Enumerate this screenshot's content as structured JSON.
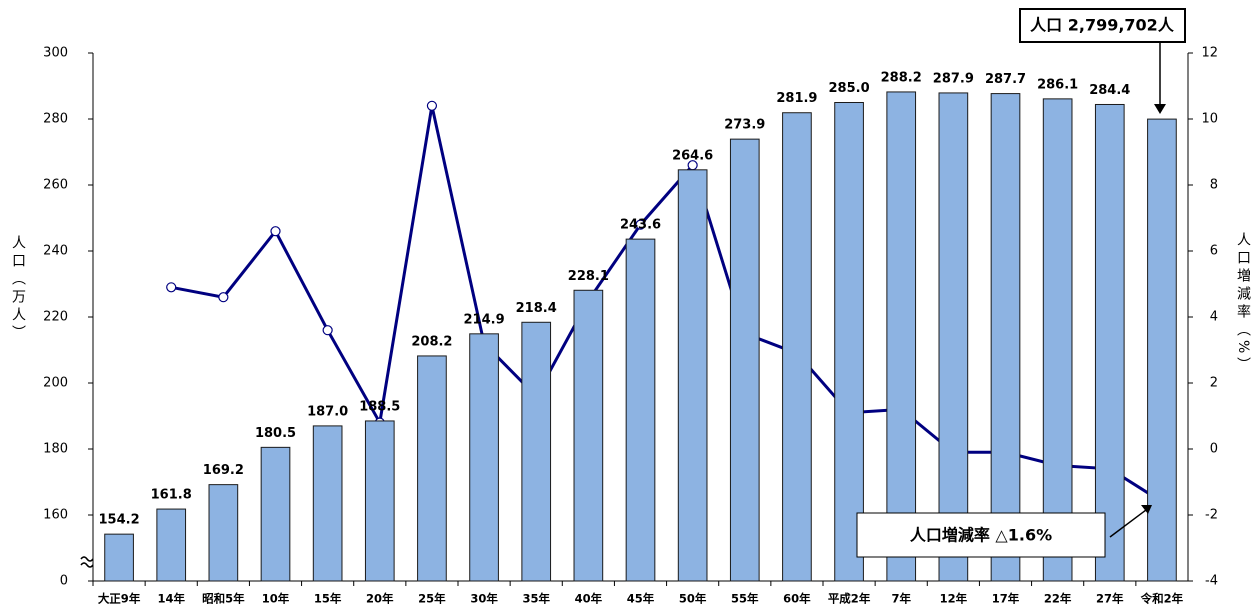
{
  "chart_data": {
    "type": "bar_line",
    "categories": [
      "大正9年",
      "14年",
      "昭和5年",
      "10年",
      "15年",
      "20年",
      "25年",
      "30年",
      "35年",
      "40年",
      "45年",
      "50年",
      "55年",
      "60年",
      "平成2年",
      "7年",
      "12年",
      "17年",
      "22年",
      "27年",
      "令和2年"
    ],
    "y_label": "人口（万人）",
    "y2_label": "人口増減率（%）",
    "ylim": [
      0,
      300
    ],
    "yticks": [
      0,
      160,
      180,
      200,
      220,
      240,
      260,
      280,
      300
    ],
    "axis_break": true,
    "y2lim": [
      -4,
      12
    ],
    "y2ticks": [
      -4,
      -2,
      0,
      2,
      4,
      6,
      8,
      10,
      12
    ],
    "series": [
      {
        "type": "bar",
        "color": "#8db3e2",
        "values": [
          154.2,
          161.8,
          169.2,
          180.5,
          187.0,
          188.5,
          208.2,
          214.9,
          218.4,
          228.1,
          243.6,
          264.6,
          273.9,
          281.9,
          285.0,
          288.2,
          287.9,
          287.7,
          286.1,
          284.4,
          279.97
        ],
        "value_labels": [
          "154.2",
          "161.8",
          "169.2",
          "180.5",
          "187.0",
          "188.5",
          "208.2",
          "214.9",
          "218.4",
          "228.1",
          "243.6",
          "264.6",
          "273.9",
          "281.9",
          "285.0",
          "288.2",
          "287.9",
          "287.7",
          "286.1",
          "284.4",
          null
        ]
      },
      {
        "type": "line",
        "axis": "y2",
        "color": "#000080",
        "values": [
          null,
          4.9,
          4.6,
          6.6,
          3.6,
          0.8,
          10.4,
          3.2,
          1.6,
          4.5,
          6.8,
          8.6,
          3.5,
          2.9,
          1.1,
          1.2,
          -0.1,
          -0.1,
          -0.5,
          -0.6,
          -1.6
        ]
      }
    ],
    "annotations": [
      "人口 2,799,702人",
      "人口増減率 △1.6%"
    ]
  }
}
